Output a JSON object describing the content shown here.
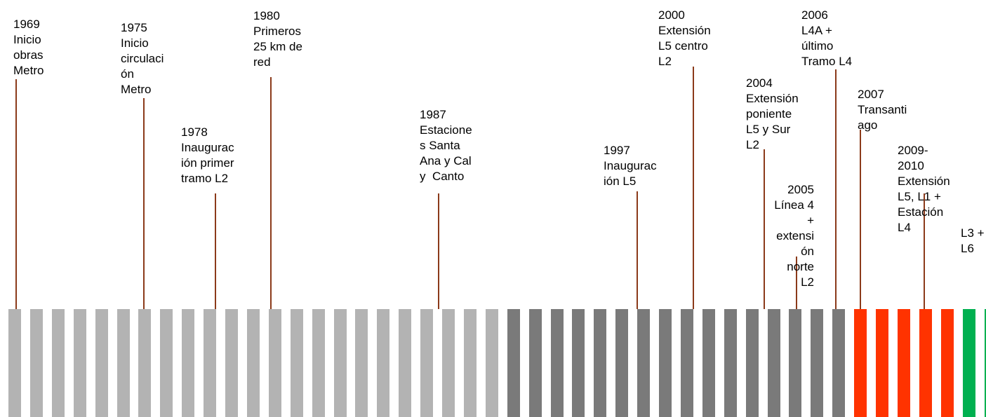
{
  "colors": {
    "early": "#b3b3b3",
    "middle": "#7a7a7a",
    "transantiago": "#ff3300",
    "recent": "#00b050",
    "stem": "#8b3a1a"
  },
  "bars": {
    "early_count": 23,
    "middle_count": 16,
    "transantiago_count": 5,
    "recent_count": 2
  },
  "milestones": [
    {
      "text": "1969\nInicio\nobras\nMetro"
    },
    {
      "text": "1975\nInicio\ncirculaci\nón\nMetro"
    },
    {
      "text": "1978\nInaugurac\nión primer\ntramo L2"
    },
    {
      "text": "1980\nPrimeros\n25 km de\nred"
    },
    {
      "text": "1987\nEstacione\ns Santa\nAna y Cal\ny  Canto"
    },
    {
      "text": "1997\nInaugurac\nión L5"
    },
    {
      "text": "2000\nExtensión\nL5 centro\nL2"
    },
    {
      "text": "2004\nExtensión\nponiente\nL5 y Sur\nL2"
    },
    {
      "text": "2005\nLínea 4\n+\nextensi\nón\nnorte\nL2"
    },
    {
      "text": "2006\nL4A +\núltimo\nTramo L4"
    },
    {
      "text": "2007\nTransanti\nago"
    },
    {
      "text": "2009-\n2010\nExtensión\nL5, L1 +\nEstación\nL4"
    },
    {
      "text": "L3 +\nL6"
    }
  ]
}
